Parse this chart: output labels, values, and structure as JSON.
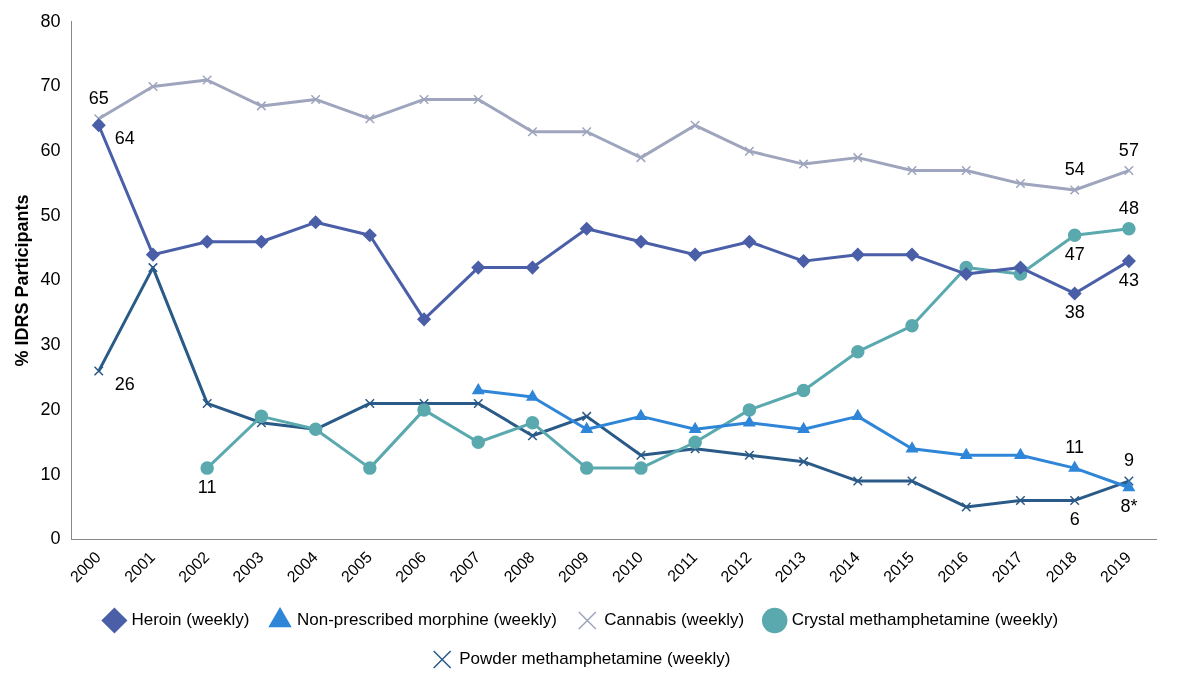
{
  "chart_data": {
    "type": "line",
    "ylabel": "% IDRS Participants",
    "categories": [
      "2000",
      "2001",
      "2002",
      "2003",
      "2004",
      "2005",
      "2006",
      "2007",
      "2008",
      "2009",
      "2010",
      "2011",
      "2012",
      "2013",
      "2014",
      "2015",
      "2016",
      "2017",
      "2018",
      "2019"
    ],
    "ylim": [
      0,
      80
    ],
    "yticks": [
      0,
      10,
      20,
      30,
      40,
      50,
      60,
      70,
      80
    ],
    "grid": false,
    "legend": "bottom",
    "series": [
      {
        "name": "Heroin (weekly)",
        "color": "#4a5fa8",
        "marker": "diamond",
        "values": [
          64,
          44,
          46,
          46,
          49,
          47,
          34,
          42,
          42,
          48,
          46,
          44,
          46,
          43,
          44,
          44,
          41,
          42,
          38,
          43
        ],
        "value_labels": [
          "64",
          null,
          null,
          null,
          null,
          null,
          null,
          null,
          null,
          null,
          null,
          null,
          null,
          null,
          null,
          null,
          null,
          null,
          "38",
          "43"
        ]
      },
      {
        "name": "Non-prescribed morphine (weekly)",
        "color": "#2f86d8",
        "marker": "triangle",
        "values": [
          null,
          null,
          null,
          null,
          null,
          null,
          null,
          23,
          22,
          17,
          19,
          17,
          18,
          17,
          19,
          14,
          13,
          13,
          11,
          8
        ],
        "value_labels": [
          null,
          null,
          null,
          null,
          null,
          null,
          null,
          null,
          null,
          null,
          null,
          null,
          null,
          null,
          null,
          null,
          null,
          null,
          "11",
          "8*"
        ]
      },
      {
        "name": "Cannabis (weekly)",
        "color": "#9ea5bd",
        "marker": "cross",
        "values": [
          65,
          70,
          71,
          67,
          68,
          65,
          68,
          68,
          63,
          63,
          59,
          64,
          60,
          58,
          59,
          57,
          57,
          55,
          54,
          57
        ],
        "value_labels": [
          "65",
          null,
          null,
          null,
          null,
          null,
          null,
          null,
          null,
          null,
          null,
          null,
          null,
          null,
          null,
          null,
          null,
          null,
          "54",
          "57"
        ]
      },
      {
        "name": "Crystal methamphetamine (weekly)",
        "color": "#5aa9ae",
        "marker": "circle",
        "values": [
          null,
          null,
          11,
          19,
          17,
          11,
          20,
          15,
          18,
          11,
          11,
          15,
          20,
          23,
          29,
          33,
          42,
          41,
          47,
          48
        ],
        "value_labels": [
          null,
          null,
          "11",
          null,
          null,
          null,
          null,
          null,
          null,
          null,
          null,
          null,
          null,
          null,
          null,
          null,
          null,
          null,
          "47",
          "48"
        ]
      },
      {
        "name": "Powder methamphetamine (weekly)",
        "color": "#2a5a87",
        "marker": "cross",
        "values": [
          26,
          42,
          21,
          18,
          17,
          21,
          21,
          21,
          16,
          19,
          13,
          14,
          13,
          12,
          9,
          9,
          5,
          6,
          6,
          9
        ],
        "value_labels": [
          "26",
          null,
          null,
          null,
          null,
          null,
          null,
          null,
          null,
          null,
          null,
          null,
          null,
          null,
          null,
          null,
          null,
          null,
          "6",
          "9"
        ]
      }
    ]
  }
}
